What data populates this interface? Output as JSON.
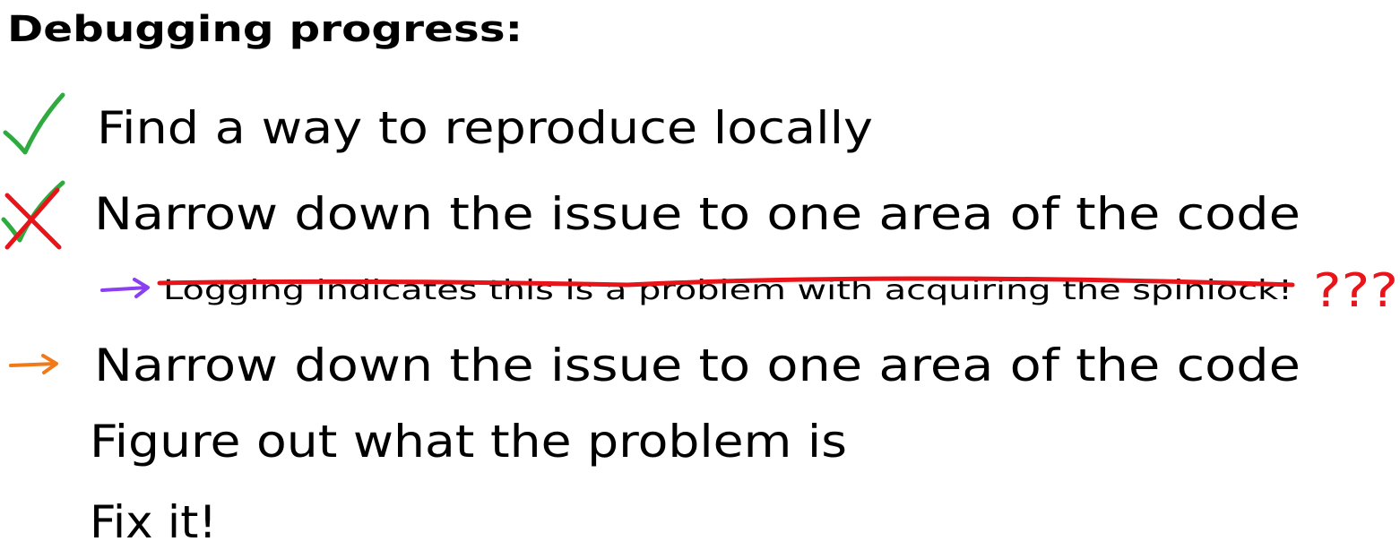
{
  "title": "Debugging progress:",
  "items": [
    "Find a way to reproduce locally",
    "Narrow down the issue to one area of the code",
    "Narrow down the issue to one area of the code",
    "Figure out what the problem is",
    "Fix it!"
  ],
  "note": "Logging indicates this is a problem with acquiring the spinlock!",
  "annotation": "???"
}
